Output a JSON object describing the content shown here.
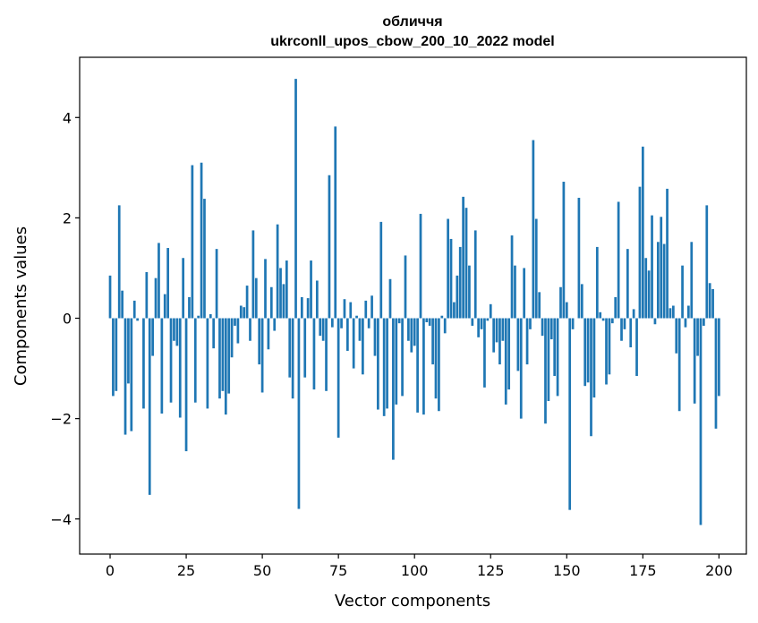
{
  "chart_data": {
    "type": "bar",
    "title": "обличчя",
    "subtitle": "ukrconll_upos_cbow_200_10_2022 model",
    "xlabel": "Vector components",
    "ylabel": "Components values",
    "xlim": [
      -10,
      209
    ],
    "ylim": [
      -4.7,
      5.2
    ],
    "xticks": [
      0,
      25,
      50,
      75,
      100,
      125,
      150,
      175,
      200
    ],
    "yticks": [
      -4,
      -2,
      0,
      2,
      4
    ],
    "xtick_labels": [
      "0",
      "25",
      "50",
      "75",
      "100",
      "125",
      "150",
      "175",
      "200"
    ],
    "ytick_labels": [
      "−4",
      "−2",
      "0",
      "2",
      "4"
    ],
    "bar_color": "#1f77b4",
    "grid": false,
    "values": [
      0.85,
      -1.55,
      -1.45,
      2.25,
      0.55,
      -2.32,
      -1.3,
      -2.25,
      0.35,
      -0.05,
      0.0,
      -1.8,
      0.92,
      -3.52,
      -0.75,
      0.8,
      1.5,
      -1.9,
      0.48,
      1.4,
      -1.68,
      -0.45,
      -0.55,
      -1.98,
      1.2,
      -2.65,
      0.42,
      3.05,
      -1.68,
      0.05,
      3.1,
      2.38,
      -1.8,
      0.08,
      -0.6,
      1.38,
      -1.6,
      -1.45,
      -1.92,
      -1.5,
      -0.78,
      -0.15,
      -0.5,
      0.25,
      0.22,
      0.65,
      -0.45,
      1.75,
      0.8,
      -0.92,
      -1.48,
      1.18,
      -0.62,
      0.62,
      -0.25,
      1.87,
      1.0,
      0.68,
      1.15,
      -1.18,
      -1.6,
      4.77,
      -3.8,
      0.42,
      -1.18,
      0.4,
      1.15,
      -1.42,
      0.75,
      -0.35,
      -0.45,
      -1.45,
      2.85,
      -0.18,
      3.82,
      -2.38,
      -0.2,
      0.38,
      -0.65,
      0.32,
      -1.0,
      0.05,
      -0.45,
      -1.12,
      0.35,
      -0.2,
      0.45,
      -0.75,
      -1.82,
      1.92,
      -1.95,
      -1.8,
      0.78,
      -2.82,
      -1.72,
      -0.1,
      -1.55,
      1.25,
      -0.45,
      -0.68,
      -0.55,
      -1.88,
      2.08,
      -1.92,
      -0.08,
      -0.15,
      -0.92,
      -1.6,
      -1.85,
      0.05,
      -0.3,
      1.98,
      1.58,
      0.32,
      0.85,
      1.42,
      2.42,
      2.2,
      1.05,
      -0.15,
      1.75,
      -0.38,
      -0.22,
      -1.38,
      -0.05,
      0.28,
      -0.68,
      -0.48,
      -0.92,
      -0.45,
      -1.72,
      -1.42,
      1.65,
      1.05,
      -1.05,
      -2.0,
      1.0,
      -0.92,
      -0.22,
      3.55,
      1.98,
      0.52,
      -0.35,
      -2.1,
      -1.65,
      -0.42,
      -1.15,
      -1.55,
      0.62,
      2.72,
      0.32,
      -3.82,
      -0.22,
      0.0,
      2.4,
      0.68,
      -1.35,
      -1.28,
      -2.35,
      -1.58,
      1.42,
      0.12,
      -0.05,
      -1.32,
      -1.12,
      -0.1,
      0.42,
      2.32,
      -0.45,
      -0.22,
      1.38,
      -0.58,
      0.18,
      -1.15,
      2.62,
      3.42,
      1.2,
      0.95,
      2.05,
      -0.12,
      1.52,
      2.02,
      1.48,
      2.58,
      0.2,
      0.25,
      -0.7,
      -1.85,
      1.05,
      -0.18,
      0.25,
      1.52,
      -1.7,
      -0.75,
      -4.12,
      -0.15,
      2.25,
      0.7,
      0.58,
      -2.2,
      -1.55
    ]
  }
}
